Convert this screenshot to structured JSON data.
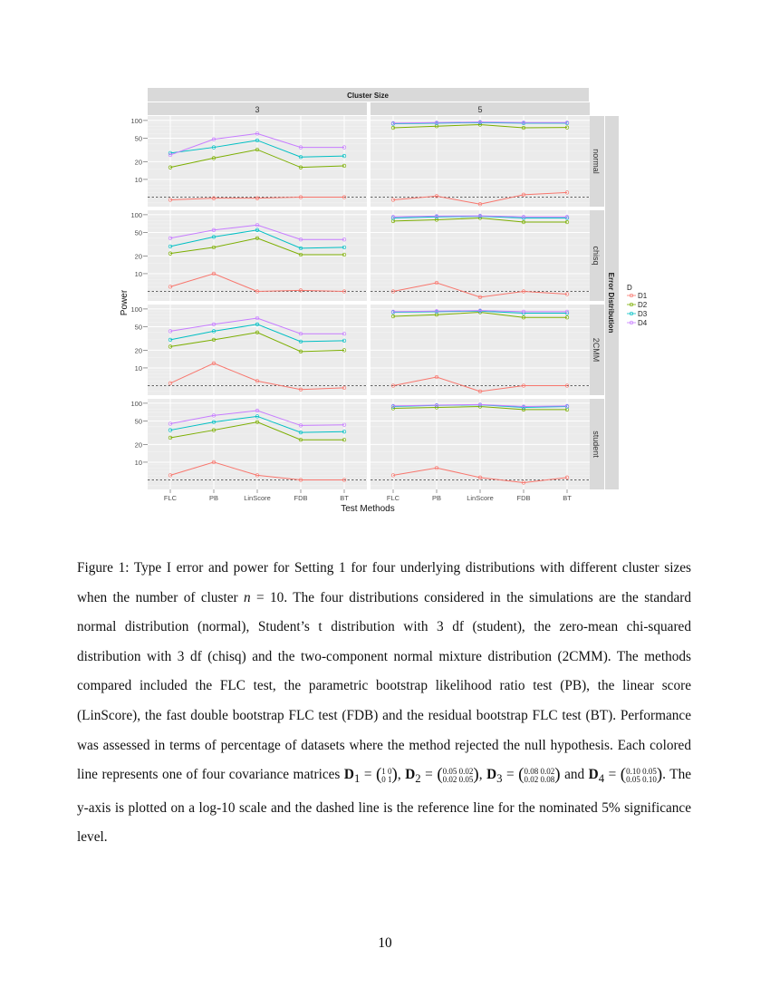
{
  "chart_data": {
    "type": "line",
    "title": "",
    "xlabel": "Test Methods",
    "ylabel": "Power",
    "y_scale": "log10",
    "ylim": [
      3.45,
      119
    ],
    "yticks": [
      10,
      20,
      50,
      100
    ],
    "reference_line": 5,
    "grid": true,
    "column_facet_title": "Cluster Size",
    "row_facet_title": "Error Distribution",
    "columns": [
      "3",
      "5"
    ],
    "rows": [
      "normal",
      "chisq",
      "2CMM",
      "student"
    ],
    "categories": [
      "FLC",
      "PB",
      "LinScore",
      "FDB",
      "BT"
    ],
    "legend": {
      "title": "D",
      "placement": "right",
      "entries": [
        "D1",
        "D2",
        "D3",
        "D4"
      ]
    },
    "colors": {
      "D1": "#F8766D",
      "D2": "#7CAE00",
      "D3": "#00BFC4",
      "D4": "#C77CFF"
    },
    "panels": {
      "normal": {
        "3": {
          "D1": [
            4.5,
            4.8,
            4.8,
            5,
            5
          ],
          "D2": [
            16,
            23,
            32,
            16,
            17
          ],
          "D3": [
            28,
            35,
            46,
            24,
            25
          ],
          "D4": [
            26,
            48,
            60,
            35,
            35
          ]
        },
        "5": {
          "D1": [
            4.5,
            5.2,
            3.8,
            5.5,
            6
          ],
          "D2": [
            75,
            80,
            85,
            75,
            76
          ],
          "D3": [
            88,
            90,
            92,
            90,
            90
          ],
          "D4": [
            90,
            92,
            94,
            92,
            92
          ]
        }
      },
      "chisq": {
        "3": {
          "D1": [
            6,
            10,
            5,
            5.2,
            5
          ],
          "D2": [
            22,
            28,
            40,
            21,
            21
          ],
          "D3": [
            29,
            42,
            55,
            27,
            28
          ],
          "D4": [
            40,
            55,
            67,
            38,
            38
          ]
        },
        "5": {
          "D1": [
            5,
            7,
            4,
            5,
            4.5
          ],
          "D2": [
            78,
            82,
            88,
            75,
            75
          ],
          "D3": [
            88,
            92,
            94,
            88,
            88
          ],
          "D4": [
            92,
            95,
            96,
            92,
            92
          ]
        }
      },
      "2CMM": {
        "3": {
          "D1": [
            5.5,
            12,
            6,
            4.3,
            4.6
          ],
          "D2": [
            23,
            30,
            40,
            19,
            20
          ],
          "D3": [
            30,
            42,
            55,
            28,
            29
          ],
          "D4": [
            42,
            55,
            70,
            38,
            38
          ]
        },
        "5": {
          "D1": [
            5,
            7,
            4,
            5,
            5
          ],
          "D2": [
            75,
            80,
            88,
            72,
            72
          ],
          "D3": [
            88,
            90,
            92,
            85,
            85
          ],
          "D4": [
            90,
            92,
            94,
            90,
            90
          ]
        }
      },
      "student": {
        "3": {
          "D1": [
            6,
            10,
            6,
            5,
            5
          ],
          "D2": [
            26,
            35,
            48,
            24,
            24
          ],
          "D3": [
            35,
            48,
            60,
            32,
            33
          ],
          "D4": [
            45,
            62,
            75,
            42,
            43
          ]
        },
        "5": {
          "D1": [
            6,
            8,
            5.5,
            4.5,
            5.5
          ],
          "D2": [
            82,
            85,
            88,
            78,
            78
          ],
          "D3": [
            88,
            92,
            94,
            85,
            88
          ],
          "D4": [
            90,
            93,
            95,
            88,
            90
          ]
        }
      }
    }
  },
  "caption": {
    "p1": "Figure 1: Type I error and power for Setting 1 for four underlying distributions with different cluster sizes when the number of cluster ",
    "n_var": "n",
    "p2": " = 10. The four distributions considered in the simulations are the standard normal distribution (normal), Student’s t distribution with 3 df (student), the zero-mean chi-squared distribution with 3 df (chisq) and the two-component normal mixture distribution (2CMM). The methods compared included the FLC test, the parametric bootstrap likelihood ratio test (PB), the linear score (LinScore), the fast double bootstrap FLC test (FDB) and the residual bootstrap FLC test (BT). Performance was assessed in terms of percentage of datasets where the method rejected the null hypothesis. Each colored line represents one of four covariance matrices ",
    "d1": "D",
    "d1_sub": "1",
    "d1_r1": "1 0",
    "d1_r2": "0 1",
    "d2": "D",
    "d2_sub": "2",
    "d2_r1": "0.05 0.02",
    "d2_r2": "0.02 0.05",
    "d3": "D",
    "d3_sub": "3",
    "d3_r1": "0.08 0.02",
    "d3_r2": "0.02 0.08",
    "d4": "D",
    "d4_sub": "4",
    "d4_r1": "0.10 0.05",
    "d4_r2": "0.05 0.10",
    "eq": " = ",
    "comma": ", ",
    "and": " and ",
    "p3": ". The y-axis is plotted on a log-10 scale and the dashed line is the reference line for the nominated 5% significance level."
  },
  "page_number": "10"
}
